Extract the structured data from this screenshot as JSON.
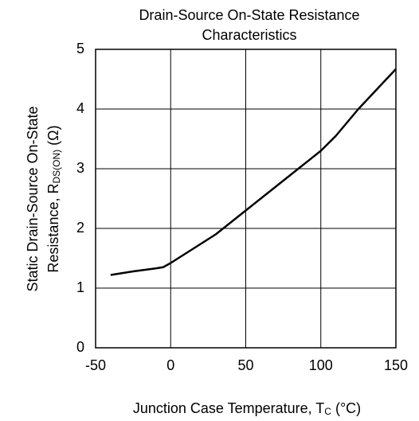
{
  "chart_data": {
    "type": "line",
    "title": [
      "Drain-Source On-State Resistance",
      "Characteristics"
    ],
    "y_label": {
      "line1": "Static Drain-Source On-State",
      "main": "Resistance, R",
      "sub": "DS(ON)",
      "unit": " (Ω)"
    },
    "x_label": {
      "main": "Junction Case Temperature, T",
      "sub": "C",
      "unit": " (°C)"
    },
    "x": [
      -40,
      -25,
      -10,
      -5,
      0,
      10,
      20,
      30,
      40,
      50,
      75,
      100,
      110,
      125,
      150
    ],
    "series": [
      {
        "color": "#000000",
        "values": [
          1.22,
          1.28,
          1.33,
          1.35,
          1.42,
          1.58,
          1.74,
          1.9,
          2.1,
          2.3,
          2.8,
          3.3,
          3.55,
          4.0,
          4.67
        ]
      }
    ],
    "xlim": [
      -50,
      150
    ],
    "xticks": [
      -50,
      0,
      50,
      100,
      150
    ],
    "ylim": [
      0,
      5
    ],
    "yticks": [
      0,
      1,
      2,
      3,
      4,
      5
    ],
    "grid": true
  }
}
